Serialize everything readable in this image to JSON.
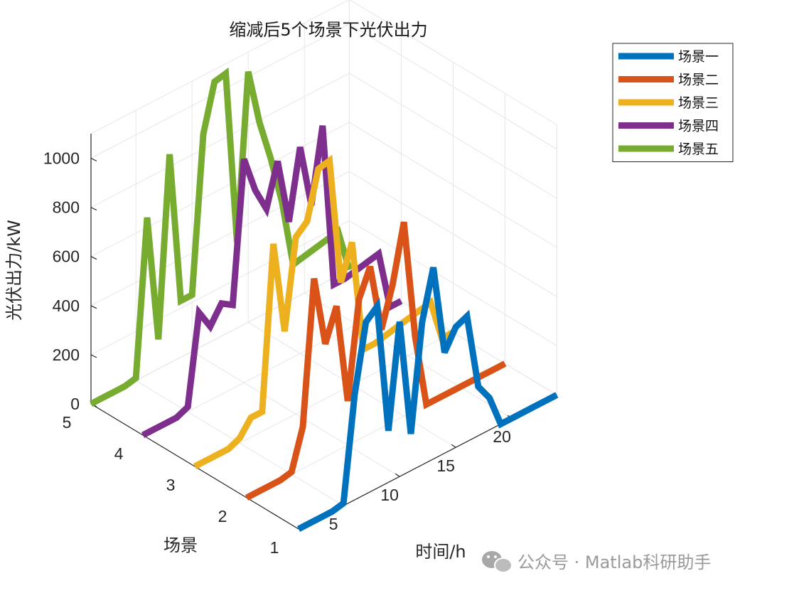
{
  "chart_data": {
    "type": "line",
    "view": "3d",
    "title": "缩减后5个场景下光伏出力",
    "xlabel": "时间/h",
    "ylabel": "场景",
    "zlabel": "光伏出力/kW",
    "xlim": [
      1,
      24
    ],
    "ylim": [
      1,
      5
    ],
    "zlim": [
      0,
      1100
    ],
    "x_ticks": [
      5,
      10,
      15,
      20
    ],
    "y_ticks": [
      1,
      2,
      3,
      4,
      5
    ],
    "z_ticks": [
      0,
      200,
      400,
      600,
      800,
      1000
    ],
    "grid": true,
    "legend_position": "top-right",
    "x": [
      1,
      2,
      3,
      4,
      5,
      6,
      7,
      8,
      9,
      10,
      11,
      12,
      13,
      14,
      15,
      16,
      17,
      18,
      19,
      20,
      21,
      22,
      23,
      24
    ],
    "series": [
      {
        "name": "场景一",
        "scene": 1,
        "color": "#0072BD",
        "values": [
          0,
          0,
          0,
          0,
          10,
          430,
          700,
          740,
          210,
          630,
          150,
          580,
          780,
          410,
          490,
          510,
          200,
          130,
          0,
          0,
          0,
          0,
          0,
          0
        ]
      },
      {
        "name": "场景二",
        "scene": 2,
        "color": "#D95319",
        "values": [
          0,
          0,
          0,
          0,
          10,
          170,
          750,
          460,
          590,
          180,
          570,
          680,
          400,
          560,
          790,
          300,
          0,
          0,
          0,
          0,
          0,
          0,
          0,
          0
        ]
      },
      {
        "name": "场景三",
        "scene": 3,
        "color": "#EDB120",
        "values": [
          0,
          0,
          0,
          0,
          20,
          80,
          80,
          740,
          360,
          720,
          760,
          950,
          960,
          440,
          580,
          120,
          120,
          130,
          140,
          150,
          160,
          170,
          0,
          0
        ]
      },
      {
        "name": "场景四",
        "scene": 4,
        "color": "#7E2F8E",
        "values": [
          0,
          0,
          0,
          0,
          20,
          380,
          300,
          370,
          340,
          910,
          760,
          660,
          830,
          560,
          840,
          580,
          880,
          210,
          210,
          220,
          230,
          240,
          0,
          0
        ]
      },
      {
        "name": "场景五",
        "scene": 5,
        "color": "#77AC30",
        "values": [
          0,
          0,
          0,
          0,
          10,
          640,
          120,
          850,
          230,
          230,
          860,
          1050,
          1060,
          350,
          1020,
          790,
          620,
          420,
          140,
          150,
          160,
          170,
          180,
          0
        ]
      }
    ]
  },
  "watermark": {
    "text": "公众号 · Matlab科研助手",
    "icon": "wechat-icon"
  }
}
